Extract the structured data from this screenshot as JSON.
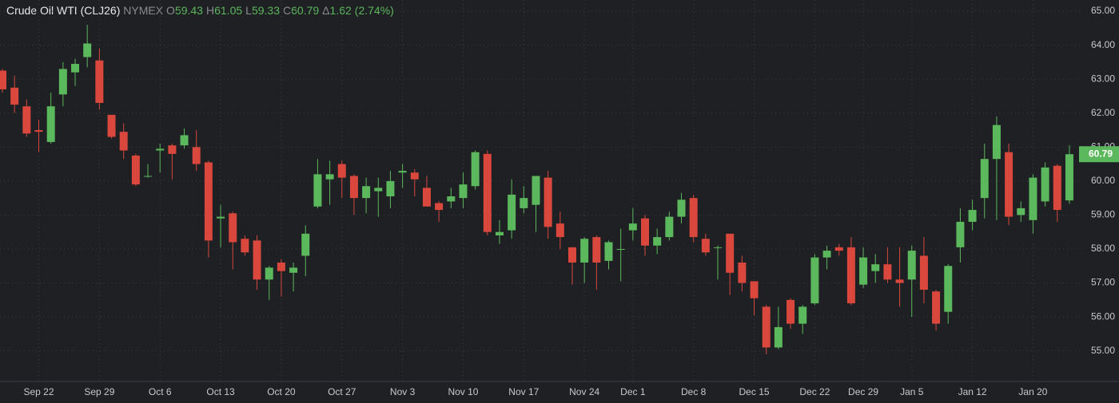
{
  "chart_data": {
    "type": "candlestick",
    "title": "Crude Oil WTI (CLJ26)",
    "exchange": "NYMEX",
    "header": [
      {
        "label": "O",
        "value": 59.43
      },
      {
        "label": "H",
        "value": 61.05
      },
      {
        "label": "L",
        "value": 59.33
      },
      {
        "label": "C",
        "value": 60.79
      },
      {
        "label": "Δ",
        "value": 1.62
      }
    ],
    "change_percent": {
      "value": 2.74,
      "label": "(2.74%)"
    },
    "last_price": 60.79,
    "up_color": "#5cb85c",
    "down_color": "#d9473d",
    "grid": true,
    "ylim": [
      54.1,
      65.33
    ],
    "yticks": [
      {
        "value": 55,
        "label": "55.00"
      },
      {
        "value": 56,
        "label": "56.00"
      },
      {
        "value": 57,
        "label": "57.00"
      },
      {
        "value": 58,
        "label": "58.00"
      },
      {
        "value": 59,
        "label": "59.00"
      },
      {
        "value": 60,
        "label": "60.00"
      },
      {
        "value": 61,
        "label": "61.00"
      },
      {
        "value": 62,
        "label": "62.00"
      },
      {
        "value": 63,
        "label": "63.00"
      },
      {
        "value": 64,
        "label": "64.00"
      },
      {
        "value": 65,
        "label": "65.00"
      }
    ],
    "categories": [
      null,
      null,
      null,
      "Sep 22",
      null,
      null,
      null,
      null,
      "Sep 29",
      null,
      null,
      null,
      null,
      "Oct 6",
      null,
      null,
      null,
      null,
      "Oct 13",
      null,
      null,
      null,
      null,
      "Oct 20",
      null,
      null,
      null,
      null,
      "Oct 27",
      null,
      null,
      null,
      null,
      "Nov 3",
      null,
      null,
      null,
      null,
      "Nov 10",
      null,
      null,
      null,
      null,
      "Nov 17",
      null,
      null,
      null,
      null,
      "Nov 24",
      null,
      null,
      null,
      "Dec 1",
      null,
      null,
      null,
      null,
      "Dec 8",
      null,
      null,
      null,
      null,
      "Dec 15",
      null,
      null,
      null,
      null,
      "Dec 22",
      null,
      null,
      null,
      "Dec 29",
      null,
      null,
      null,
      "Jan 5",
      null,
      null,
      null,
      null,
      "Jan 12",
      null,
      null,
      null,
      null,
      "Jan 20",
      null,
      null,
      null
    ],
    "open": [
      63.25,
      62.75,
      62.2,
      61.5,
      61.15,
      62.55,
      63.2,
      63.65,
      63.55,
      61.95,
      61.45,
      60.75,
      60.15,
      60.9,
      61.05,
      61.05,
      61.0,
      60.55,
      58.9,
      59.05,
      58.3,
      58.25,
      57.1,
      57.6,
      57.3,
      57.8,
      59.25,
      60.05,
      60.5,
      60.15,
      59.5,
      59.7,
      59.55,
      60.25,
      60.25,
      59.8,
      59.35,
      59.4,
      59.5,
      59.85,
      60.8,
      58.4,
      58.55,
      59.2,
      59.3,
      60.1,
      58.75,
      58.05,
      57.6,
      58.35,
      57.65,
      58.0,
      58.55,
      58.9,
      58.1,
      58.35,
      58.95,
      59.5,
      58.3,
      58.05,
      58.45,
      57.6,
      57.05,
      56.3,
      55.1,
      56.5,
      55.8,
      56.4,
      57.75,
      58.05,
      58.05,
      56.95,
      57.35,
      57.55,
      57.1,
      57.1,
      57.8,
      56.75,
      56.15,
      58.05,
      58.8,
      59.5,
      60.65,
      60.85,
      59.0,
      58.85,
      59.4,
      60.45,
      59.43
    ],
    "high": [
      63.3,
      63.1,
      62.4,
      61.8,
      62.6,
      63.5,
      63.6,
      64.6,
      63.9,
      61.95,
      61.7,
      60.8,
      60.5,
      61.1,
      61.1,
      61.55,
      61.5,
      60.6,
      59.3,
      59.1,
      58.4,
      58.4,
      57.5,
      57.7,
      57.6,
      58.7,
      60.65,
      60.6,
      60.6,
      60.2,
      60.1,
      60.1,
      60.3,
      60.5,
      60.35,
      60.15,
      59.4,
      59.8,
      60.25,
      60.9,
      60.9,
      58.85,
      60.05,
      59.85,
      60.15,
      60.3,
      59.1,
      58.05,
      58.35,
      58.4,
      58.25,
      58.6,
      59.2,
      59.0,
      58.6,
      59.1,
      59.65,
      59.6,
      58.45,
      58.1,
      58.45,
      57.8,
      57.05,
      56.35,
      56.3,
      56.55,
      56.35,
      57.85,
      58.1,
      58.15,
      58.35,
      58.05,
      57.85,
      58.05,
      58.05,
      58.1,
      58.35,
      56.8,
      57.55,
      59.2,
      59.45,
      61.1,
      61.9,
      61.1,
      59.4,
      60.2,
      60.55,
      60.5,
      61.05
    ],
    "low": [
      62.6,
      62.0,
      61.3,
      60.85,
      61.1,
      62.2,
      62.8,
      63.35,
      62.1,
      61.25,
      60.65,
      59.85,
      60.1,
      60.25,
      60.05,
      60.95,
      60.3,
      57.75,
      58.05,
      57.4,
      57.8,
      56.8,
      56.5,
      56.6,
      56.75,
      57.2,
      59.2,
      59.3,
      59.5,
      59.0,
      59.05,
      58.95,
      59.2,
      59.8,
      59.55,
      59.25,
      58.8,
      59.2,
      59.2,
      59.75,
      58.4,
      58.15,
      58.3,
      59.05,
      58.5,
      58.3,
      58.0,
      56.95,
      57.0,
      56.8,
      57.4,
      57.05,
      58.25,
      57.8,
      57.85,
      58.25,
      58.75,
      58.2,
      57.8,
      57.1,
      56.65,
      56.75,
      56.05,
      54.9,
      55.05,
      55.65,
      55.5,
      56.35,
      57.4,
      57.8,
      56.35,
      56.85,
      57.0,
      57.0,
      56.3,
      56.0,
      56.4,
      55.6,
      55.8,
      57.6,
      58.55,
      58.9,
      58.85,
      58.7,
      58.8,
      58.45,
      59.25,
      58.8,
      59.33
    ],
    "close": [
      62.7,
      62.25,
      61.4,
      61.45,
      62.2,
      63.3,
      63.45,
      64.05,
      62.3,
      61.3,
      60.9,
      59.9,
      60.15,
      60.95,
      60.8,
      61.35,
      60.5,
      58.25,
      58.95,
      58.2,
      57.9,
      57.1,
      57.45,
      57.35,
      57.45,
      58.45,
      60.2,
      60.2,
      60.1,
      59.5,
      59.85,
      59.8,
      60.0,
      60.3,
      60.05,
      59.25,
      59.15,
      59.55,
      59.9,
      60.85,
      58.5,
      58.5,
      59.6,
      59.5,
      60.15,
      58.65,
      58.35,
      57.6,
      58.3,
      57.6,
      58.2,
      58.0,
      58.75,
      58.1,
      58.35,
      58.95,
      59.45,
      58.35,
      57.9,
      58.05,
      57.3,
      57.0,
      56.55,
      55.1,
      55.7,
      55.8,
      56.3,
      57.75,
      57.95,
      57.95,
      56.4,
      57.75,
      57.55,
      57.1,
      57.0,
      57.95,
      56.8,
      55.8,
      57.5,
      58.8,
      59.15,
      60.65,
      61.65,
      58.95,
      59.2,
      60.1,
      60.4,
      59.15,
      60.79
    ]
  }
}
